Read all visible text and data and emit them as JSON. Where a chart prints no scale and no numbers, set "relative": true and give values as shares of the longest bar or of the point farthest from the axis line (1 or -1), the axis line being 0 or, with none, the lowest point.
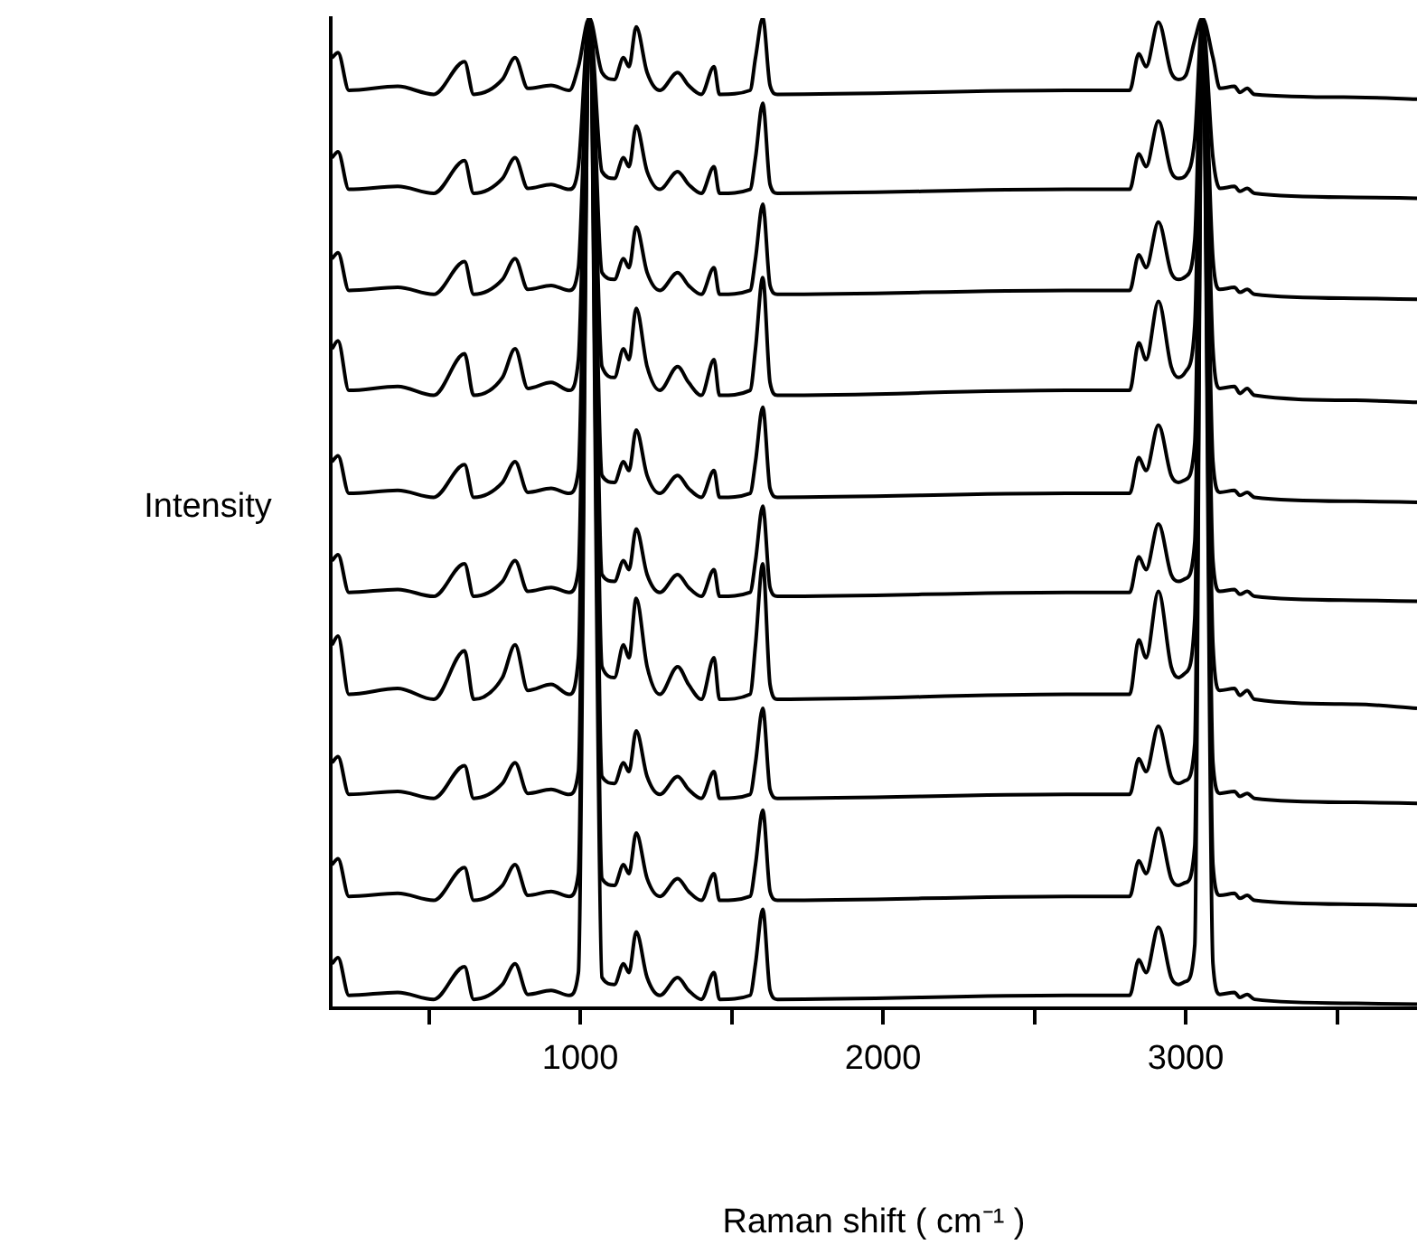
{
  "chart_data": {
    "type": "line",
    "xlabel": "Raman shift ( cm⁻¹ )",
    "ylabel": "Intensity",
    "relative": true,
    "legend": false,
    "grid": false,
    "marker": "none",
    "line_style": "solid",
    "x": [
      180,
      200,
      236,
      397,
      516,
      618,
      648,
      743,
      785,
      827,
      904,
      964,
      994,
      1030,
      1072,
      1113,
      1143,
      1161,
      1185,
      1221,
      1263,
      1322,
      1358,
      1400,
      1442,
      1460,
      1561,
      1579,
      1603,
      1627,
      1651,
      2606,
      2815,
      2845,
      2869,
      2910,
      2952,
      2976,
      3000,
      3030,
      3055,
      3090,
      3113,
      3161,
      3179,
      3203,
      3227,
      3561,
      3764
    ],
    "xlim": [
      176,
      3764
    ],
    "xticks": [
      {
        "value": 500,
        "label": null
      },
      1000,
      {
        "value": 1500,
        "label": null
      },
      2000,
      {
        "value": 2500,
        "label": null
      },
      3000,
      {
        "value": 3500,
        "label": null
      }
    ],
    "series": [
      {
        "color": "#000000",
        "values": [
          0.96,
          0.965,
          0.927,
          0.931,
          0.923,
          0.956,
          0.923,
          0.938,
          0.96,
          0.929,
          0.932,
          0.927,
          0.951,
          1,
          0.945,
          0.938,
          0.96,
          0.951,
          0.991,
          0.945,
          0.927,
          0.945,
          0.932,
          0.923,
          0.951,
          0.923,
          0.927,
          0.96,
          1,
          0.932,
          0.923,
          0.927,
          0.927,
          0.964,
          0.951,
          0.996,
          0.945,
          0.938,
          0.942,
          0.978,
          1,
          0.96,
          0.929,
          0.931,
          0.925,
          0.929,
          0.923,
          0.92,
          0.918
        ]
      },
      {
        "color": "#000000",
        "values": [
          0.859,
          0.865,
          0.827,
          0.83,
          0.823,
          0.856,
          0.823,
          0.838,
          0.859,
          0.828,
          0.832,
          0.827,
          0.85,
          1,
          0.845,
          0.838,
          0.859,
          0.85,
          0.891,
          0.845,
          0.827,
          0.845,
          0.832,
          0.823,
          0.85,
          0.823,
          0.827,
          0.859,
          0.914,
          0.832,
          0.823,
          0.827,
          0.827,
          0.863,
          0.85,
          0.896,
          0.845,
          0.838,
          0.841,
          0.878,
          1,
          0.859,
          0.828,
          0.83,
          0.825,
          0.828,
          0.823,
          0.819,
          0.818
        ]
      },
      {
        "color": "#000000",
        "values": [
          0.757,
          0.763,
          0.725,
          0.728,
          0.721,
          0.754,
          0.721,
          0.736,
          0.757,
          0.726,
          0.73,
          0.725,
          0.748,
          1,
          0.743,
          0.736,
          0.757,
          0.748,
          0.789,
          0.743,
          0.725,
          0.743,
          0.73,
          0.721,
          0.748,
          0.721,
          0.725,
          0.757,
          0.812,
          0.73,
          0.721,
          0.725,
          0.725,
          0.761,
          0.748,
          0.794,
          0.743,
          0.736,
          0.739,
          0.776,
          1,
          0.757,
          0.726,
          0.728,
          0.723,
          0.726,
          0.721,
          0.717,
          0.716
        ]
      },
      {
        "color": "#000000",
        "values": [
          0.666,
          0.674,
          0.624,
          0.628,
          0.619,
          0.661,
          0.619,
          0.637,
          0.666,
          0.626,
          0.632,
          0.624,
          0.655,
          1,
          0.648,
          0.637,
          0.666,
          0.655,
          0.707,
          0.648,
          0.624,
          0.648,
          0.632,
          0.619,
          0.655,
          0.619,
          0.624,
          0.666,
          0.738,
          0.632,
          0.619,
          0.624,
          0.624,
          0.672,
          0.655,
          0.714,
          0.648,
          0.637,
          0.643,
          0.69,
          1,
          0.666,
          0.626,
          0.628,
          0.621,
          0.626,
          0.619,
          0.614,
          0.612
        ]
      },
      {
        "color": "#000000",
        "values": [
          0.552,
          0.558,
          0.52,
          0.523,
          0.516,
          0.549,
          0.516,
          0.531,
          0.552,
          0.521,
          0.525,
          0.52,
          0.543,
          1,
          0.538,
          0.531,
          0.552,
          0.543,
          0.584,
          0.538,
          0.52,
          0.538,
          0.525,
          0.516,
          0.543,
          0.516,
          0.52,
          0.552,
          0.607,
          0.525,
          0.516,
          0.52,
          0.52,
          0.556,
          0.543,
          0.589,
          0.538,
          0.531,
          0.534,
          0.571,
          1,
          0.552,
          0.521,
          0.523,
          0.518,
          0.521,
          0.516,
          0.512,
          0.511
        ]
      },
      {
        "color": "#000000",
        "values": [
          0.452,
          0.458,
          0.42,
          0.423,
          0.416,
          0.449,
          0.416,
          0.431,
          0.452,
          0.421,
          0.425,
          0.42,
          0.443,
          1,
          0.438,
          0.431,
          0.452,
          0.443,
          0.484,
          0.438,
          0.42,
          0.438,
          0.425,
          0.416,
          0.443,
          0.416,
          0.42,
          0.452,
          0.507,
          0.425,
          0.416,
          0.42,
          0.42,
          0.456,
          0.443,
          0.489,
          0.438,
          0.431,
          0.434,
          0.471,
          1,
          0.452,
          0.421,
          0.423,
          0.418,
          0.421,
          0.416,
          0.412,
          0.411
        ]
      },
      {
        "color": "#000000",
        "values": [
          0.367,
          0.376,
          0.317,
          0.323,
          0.312,
          0.361,
          0.312,
          0.334,
          0.367,
          0.321,
          0.327,
          0.317,
          0.354,
          1,
          0.345,
          0.334,
          0.367,
          0.354,
          0.414,
          0.345,
          0.317,
          0.345,
          0.327,
          0.312,
          0.354,
          0.312,
          0.317,
          0.367,
          0.449,
          0.327,
          0.312,
          0.317,
          0.317,
          0.372,
          0.354,
          0.421,
          0.345,
          0.334,
          0.339,
          0.394,
          1,
          0.367,
          0.321,
          0.323,
          0.316,
          0.321,
          0.312,
          0.307,
          0.303
        ]
      },
      {
        "color": "#000000",
        "values": [
          0.248,
          0.254,
          0.216,
          0.219,
          0.212,
          0.245,
          0.212,
          0.227,
          0.248,
          0.217,
          0.221,
          0.216,
          0.239,
          1,
          0.234,
          0.227,
          0.248,
          0.239,
          0.28,
          0.234,
          0.216,
          0.234,
          0.221,
          0.212,
          0.239,
          0.212,
          0.216,
          0.248,
          0.303,
          0.221,
          0.212,
          0.216,
          0.216,
          0.252,
          0.239,
          0.285,
          0.234,
          0.227,
          0.23,
          0.267,
          1,
          0.248,
          0.217,
          0.219,
          0.214,
          0.217,
          0.212,
          0.208,
          0.207
        ]
      },
      {
        "color": "#000000",
        "values": [
          0.145,
          0.151,
          0.113,
          0.116,
          0.109,
          0.142,
          0.109,
          0.124,
          0.145,
          0.114,
          0.118,
          0.113,
          0.136,
          1,
          0.131,
          0.124,
          0.145,
          0.136,
          0.177,
          0.131,
          0.113,
          0.131,
          0.118,
          0.109,
          0.136,
          0.109,
          0.113,
          0.145,
          0.2,
          0.118,
          0.109,
          0.113,
          0.113,
          0.149,
          0.136,
          0.182,
          0.131,
          0.124,
          0.127,
          0.164,
          1,
          0.145,
          0.114,
          0.116,
          0.111,
          0.114,
          0.109,
          0.105,
          0.104
        ]
      },
      {
        "color": "#000000",
        "values": [
          0.045,
          0.051,
          0.013,
          0.016,
          0.009,
          0.042,
          0.009,
          0.024,
          0.045,
          0.014,
          0.018,
          0.013,
          0.036,
          1,
          0.031,
          0.024,
          0.045,
          0.036,
          0.077,
          0.031,
          0.013,
          0.031,
          0.018,
          0.009,
          0.036,
          0.009,
          0.013,
          0.045,
          0.1,
          0.018,
          0.009,
          0.013,
          0.013,
          0.049,
          0.036,
          0.082,
          0.031,
          0.024,
          0.027,
          0.064,
          1,
          0.045,
          0.014,
          0.016,
          0.011,
          0.014,
          0.009,
          0.005,
          0.004
        ]
      }
    ]
  }
}
